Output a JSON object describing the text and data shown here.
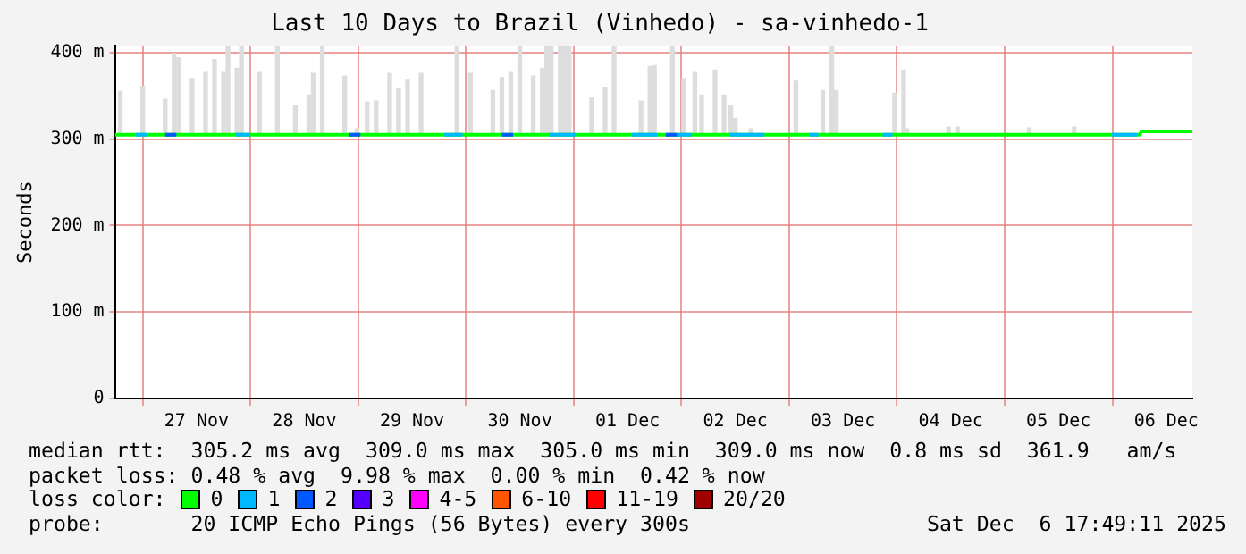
{
  "chart_data": {
    "type": "line",
    "title": "Last 10 Days to Brazil (Vinhedo) - sa-vinhedo-1",
    "ylabel": "Seconds",
    "xlim": [
      "2025-11-26T17:49",
      "2025-12-06T17:49"
    ],
    "xticks": [
      {
        "value": "2025-11-27T12:00",
        "label": "27 Nov"
      },
      {
        "value": "2025-11-28T12:00",
        "label": "28 Nov"
      },
      {
        "value": "2025-11-29T12:00",
        "label": "29 Nov"
      },
      {
        "value": "2025-11-30T12:00",
        "label": "30 Nov"
      },
      {
        "value": "2025-12-01T12:00",
        "label": "01 Dec"
      },
      {
        "value": "2025-12-02T12:00",
        "label": "02 Dec"
      },
      {
        "value": "2025-12-03T12:00",
        "label": "03 Dec"
      },
      {
        "value": "2025-12-04T12:00",
        "label": "04 Dec"
      },
      {
        "value": "2025-12-05T12:00",
        "label": "05 Dec"
      },
      {
        "value": "2025-12-06T12:00",
        "label": "06 Dec"
      }
    ],
    "ylim": [
      0,
      408
    ],
    "yticks": [
      0,
      {
        "value": 100,
        "label": "100 m"
      },
      {
        "value": 200,
        "label": "200 m"
      },
      {
        "value": 300,
        "label": "300 m"
      },
      {
        "value": 400,
        "label": "400 m"
      }
    ],
    "grid": true,
    "legend": "bottom",
    "legend_title": "loss color:",
    "series": [
      {
        "type": "bar",
        "color": "#dddddd",
        "x": [
          "2025-11-26T19:00",
          "2025-11-27T00:00",
          "2025-11-27T05:00",
          "2025-11-27T07:00",
          "2025-11-27T08:00",
          "2025-11-27T11:00",
          "2025-11-27T14:00",
          "2025-11-27T16:00",
          "2025-11-27T18:00",
          "2025-11-27T19:00",
          "2025-11-27T21:00",
          "2025-11-27T22:00",
          "2025-11-28T02:00",
          "2025-11-28T06:00",
          "2025-11-28T10:00",
          "2025-11-28T13:00",
          "2025-11-28T14:00",
          "2025-11-28T16:00",
          "2025-11-28T21:00",
          "2025-11-28T23:45",
          "2025-11-29T02:00",
          "2025-11-29T04:00",
          "2025-11-29T07:00",
          "2025-11-29T09:00",
          "2025-11-29T11:00",
          "2025-11-29T14:00",
          "2025-11-29T22:00",
          "2025-11-30T01:00",
          "2025-11-30T06:00",
          "2025-11-30T08:00",
          "2025-11-30T10:00",
          "2025-11-30T12:00",
          "2025-11-30T15:00",
          "2025-11-30T17:00",
          "2025-11-30T18:00",
          "2025-11-30T19:00",
          "2025-11-30T21:00",
          "2025-11-30T22:00",
          "2025-11-30T23:00",
          "2025-12-01T04:00",
          "2025-12-01T07:00",
          "2025-12-01T09:00",
          "2025-12-01T15:00",
          "2025-12-01T17:00",
          "2025-12-01T18:00",
          "2025-12-01T22:00",
          "2025-12-02T00:30",
          "2025-12-02T03:00",
          "2025-12-02T04:30",
          "2025-12-02T07:30",
          "2025-12-02T09:30",
          "2025-12-02T11:00",
          "2025-12-02T12:00",
          "2025-12-02T15:30",
          "2025-12-03T01:30",
          "2025-12-03T07:30",
          "2025-12-03T09:30",
          "2025-12-03T10:30",
          "2025-12-03T23:30",
          "2025-12-04T01:30",
          "2025-12-04T02:15",
          "2025-12-04T11:30",
          "2025-12-04T13:30",
          "2025-12-05T05:30",
          "2025-12-05T15:30"
        ],
        "base": [
          305,
          305,
          305,
          305,
          305,
          305,
          305,
          305,
          305,
          305,
          305,
          305,
          305,
          305,
          305,
          305,
          305,
          305,
          305,
          305,
          305,
          305,
          305,
          305,
          305,
          305,
          305,
          305,
          305,
          305,
          305,
          305,
          305,
          305,
          305,
          305,
          305,
          305,
          305,
          305,
          305,
          305,
          305,
          305,
          305,
          305,
          305,
          305,
          305,
          305,
          305,
          305,
          305,
          305,
          305,
          305,
          305,
          305,
          305,
          305,
          305,
          305,
          305,
          305,
          305
        ],
        "values": [
          50,
          56,
          41,
          94,
          89,
          65,
          72,
          87,
          72,
          102,
          77,
          102,
          72,
          102,
          34,
          46,
          71,
          102,
          68,
          7,
          38,
          39,
          71,
          53,
          64,
          71,
          102,
          71,
          51,
          66,
          72,
          102,
          68,
          77,
          102,
          102,
          102,
          102,
          102,
          43,
          55,
          102,
          39,
          79,
          80,
          102,
          65,
          72,
          46,
          75,
          46,
          34,
          19,
          7,
          62,
          51,
          102,
          51,
          48,
          75,
          7,
          9,
          9,
          8,
          9
        ]
      },
      {
        "name": "0",
        "color": "#00ff00",
        "x": [
          "2025-11-26T17:49",
          "2025-12-06T06:00",
          "2025-12-06T06:30",
          "2025-12-06T17:49"
        ],
        "values": [
          305,
          305,
          309,
          309
        ]
      },
      {
        "name": "1",
        "color": "#00b8ff",
        "x": [
          "2025-11-26T22:30",
          "2025-11-27T01:00"
        ],
        "values": [
          305,
          305
        ]
      },
      {
        "name": "2",
        "color": "#0059ff",
        "x": [
          "2025-11-27T05:00",
          "2025-11-27T07:30"
        ],
        "values": [
          305,
          305
        ]
      },
      {
        "name": "3",
        "color": "#5500ff"
      },
      {
        "name": "4-5",
        "color": "#ff00ff"
      },
      {
        "name": "6-10",
        "color": "#ff5500"
      },
      {
        "name": "11-19",
        "color": "#ff0000"
      },
      {
        "name": "20/20",
        "color": "#a10000"
      },
      {
        "color": "#00b8ff",
        "x": [
          "2025-11-27T20:45",
          "2025-11-27T23:55"
        ],
        "values": [
          305,
          305
        ]
      },
      {
        "color": "#00b8ff",
        "x": [
          "2025-11-29T19:10",
          "2025-11-29T23:15"
        ],
        "values": [
          305,
          305
        ]
      },
      {
        "color": "#00b8ff",
        "x": [
          "2025-11-30T18:30",
          "2025-12-01T00:30"
        ],
        "values": [
          305,
          305
        ]
      },
      {
        "color": "#00b8ff",
        "x": [
          "2025-12-01T13:00",
          "2025-12-01T18:40"
        ],
        "values": [
          305,
          305
        ]
      },
      {
        "color": "#00b8ff",
        "x": [
          "2025-12-01T23:00",
          "2025-12-02T02:20"
        ],
        "values": [
          305,
          305
        ]
      },
      {
        "color": "#00b8ff",
        "x": [
          "2025-12-02T10:50",
          "2025-12-02T18:30"
        ],
        "values": [
          305,
          305
        ]
      },
      {
        "color": "#00b8ff",
        "x": [
          "2025-12-03T04:30",
          "2025-12-03T06:30"
        ],
        "values": [
          305,
          305
        ]
      },
      {
        "color": "#00b8ff",
        "x": [
          "2025-12-03T20:50",
          "2025-12-03T23:00"
        ],
        "values": [
          305,
          305
        ]
      },
      {
        "color": "#00b8ff",
        "x": [
          "2025-12-05T23:50",
          "2025-12-06T05:30"
        ],
        "values": [
          305,
          305
        ]
      },
      {
        "color": "#0059ff",
        "x": [
          "2025-11-28T22:00",
          "2025-11-29T00:30"
        ],
        "values": [
          305,
          305
        ]
      },
      {
        "color": "#0059ff",
        "x": [
          "2025-11-30T08:00",
          "2025-11-30T10:30"
        ],
        "values": [
          305,
          305
        ]
      },
      {
        "color": "#0059ff",
        "x": [
          "2025-12-01T20:30",
          "2025-12-01T23:00"
        ],
        "values": [
          305,
          305
        ]
      }
    ],
    "annotations": [
      "median rtt:  305.2 ms avg  309.0 ms max  305.0 ms min  309.0 ms now  0.8 ms sd  361.9   am/s",
      "packet loss: 0.48 % avg  9.98 % max  0.00 % min  0.42 % now",
      "probe:       20 ICMP Echo Pings (56 Bytes) every 300s",
      "Sat Dec  6 17:49:11 2025"
    ]
  }
}
